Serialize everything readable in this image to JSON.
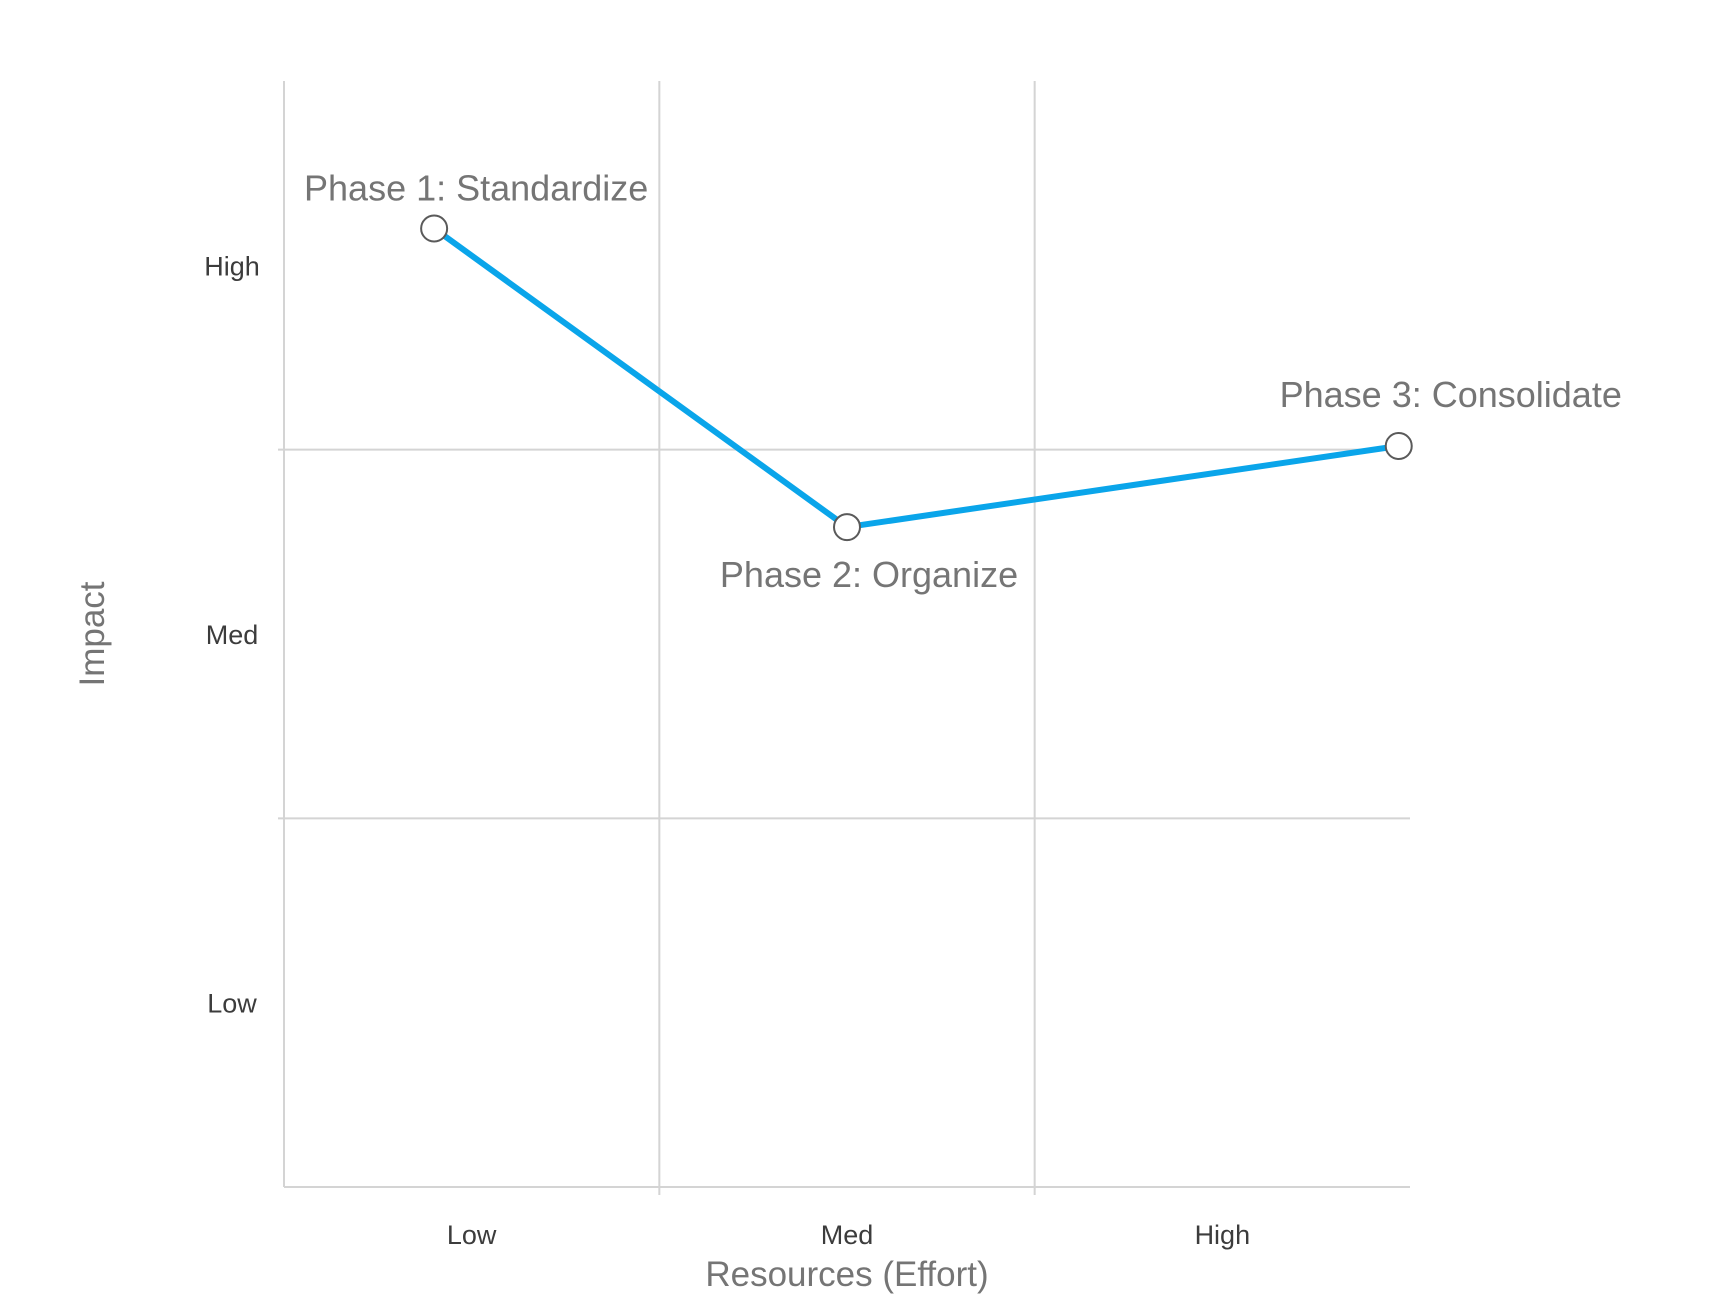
{
  "chart_data": {
    "type": "line",
    "title": "",
    "xlabel": "Resources (Effort)",
    "ylabel": "Impact",
    "x_categories": [
      "Low",
      "Med",
      "High"
    ],
    "y_categories": [
      "Low",
      "Med",
      "High"
    ],
    "xlim": [
      0,
      3
    ],
    "ylim": [
      0,
      3
    ],
    "grid": true,
    "legend": "none",
    "colors": {
      "line": "#0aa5ea",
      "grid": "#d4d4d4",
      "marker_fill": "#ffffff",
      "marker_stroke": "#5a5a5a"
    },
    "series": [
      {
        "x": [
          0.4,
          1.5,
          2.97
        ],
        "y": [
          2.6,
          1.79,
          2.01
        ],
        "labels": [
          "Phase 1: Standardize",
          "Phase 2: Organize",
          "Phase 3: Consolidate"
        ]
      }
    ]
  }
}
